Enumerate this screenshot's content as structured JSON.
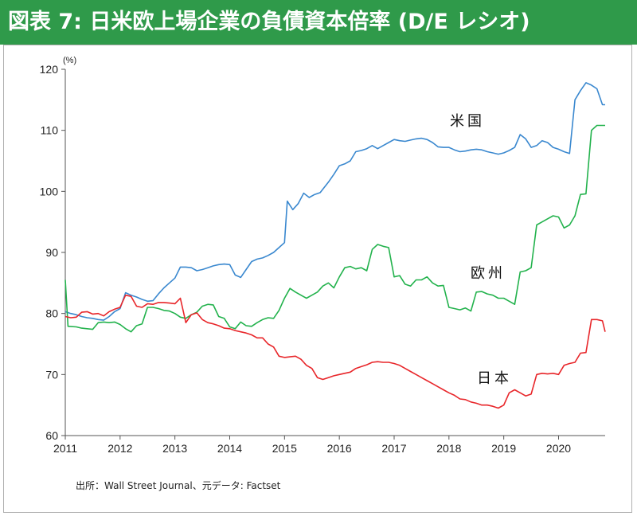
{
  "title": "図表 7: 日米欧上場企業の負債資本倍率 (D/E レシオ)",
  "colors": {
    "title_bg": "#2f9a4a",
    "us": "#3a88cf",
    "europe": "#22b24c",
    "japan": "#e8262a"
  },
  "chart_data": {
    "type": "line",
    "title": "",
    "xlabel": "",
    "ylabel": "(%)",
    "xlim": [
      2011.0,
      2020.85
    ],
    "ylim": [
      60,
      120
    ],
    "yticks": [
      60,
      70,
      80,
      90,
      100,
      110,
      120
    ],
    "xticks": [
      2011,
      2012,
      2013,
      2014,
      2015,
      2016,
      2017,
      2018,
      2019,
      2020
    ],
    "grid": false,
    "legend": "inline labels",
    "series": [
      {
        "name": "米国",
        "color": "#3a88cf",
        "x": [
          2011.0,
          2011.1,
          2011.2,
          2011.3,
          2011.4,
          2011.5,
          2011.6,
          2011.7,
          2011.8,
          2011.9,
          2012.0,
          2012.1,
          2012.2,
          2012.3,
          2012.4,
          2012.5,
          2012.6,
          2012.7,
          2012.8,
          2012.9,
          2013.0,
          2013.1,
          2013.2,
          2013.3,
          2013.4,
          2013.5,
          2013.6,
          2013.7,
          2013.8,
          2013.9,
          2014.0,
          2014.1,
          2014.2,
          2014.3,
          2014.4,
          2014.5,
          2014.6,
          2014.7,
          2014.8,
          2014.9,
          2015.0,
          2015.05,
          2015.15,
          2015.25,
          2015.35,
          2015.45,
          2015.55,
          2015.65,
          2015.8,
          2015.9,
          2016.0,
          2016.1,
          2016.2,
          2016.3,
          2016.4,
          2016.5,
          2016.6,
          2016.7,
          2016.8,
          2016.9,
          2017.0,
          2017.1,
          2017.2,
          2017.3,
          2017.4,
          2017.5,
          2017.6,
          2017.7,
          2017.8,
          2017.9,
          2018.0,
          2018.1,
          2018.2,
          2018.3,
          2018.4,
          2018.5,
          2018.6,
          2018.7,
          2018.8,
          2018.9,
          2019.0,
          2019.1,
          2019.2,
          2019.3,
          2019.4,
          2019.5,
          2019.6,
          2019.7,
          2019.8,
          2019.9,
          2020.0,
          2020.1,
          2020.2,
          2020.3,
          2020.4,
          2020.5,
          2020.6,
          2020.7,
          2020.8,
          2020.85
        ],
        "values": [
          80.3,
          80.0,
          79.8,
          79.5,
          79.3,
          79.2,
          79.0,
          78.9,
          79.5,
          80.3,
          80.8,
          83.4,
          83.0,
          82.7,
          82.3,
          82.0,
          82.1,
          83.2,
          84.2,
          85.0,
          85.8,
          87.6,
          87.6,
          87.5,
          87.0,
          87.2,
          87.5,
          87.8,
          88.0,
          88.1,
          88.0,
          86.3,
          85.9,
          87.2,
          88.5,
          88.9,
          89.1,
          89.5,
          90.0,
          90.8,
          91.6,
          98.4,
          97.0,
          98.0,
          99.7,
          99.0,
          99.5,
          99.8,
          101.5,
          102.8,
          104.2,
          104.5,
          105.0,
          106.5,
          106.7,
          107.0,
          107.5,
          107.0,
          107.5,
          108.0,
          108.5,
          108.3,
          108.2,
          108.4,
          108.6,
          108.7,
          108.5,
          108.0,
          107.3,
          107.2,
          107.2,
          106.8,
          106.5,
          106.6,
          106.8,
          106.9,
          106.8,
          106.5,
          106.3,
          106.1,
          106.3,
          106.7,
          107.2,
          109.3,
          108.6,
          107.2,
          107.5,
          108.3,
          108.0,
          107.2,
          106.9,
          106.5,
          106.2,
          115.0,
          116.5,
          117.8,
          117.4,
          116.8,
          114.2,
          114.2
        ]
      },
      {
        "name": "欧州",
        "color": "#22b24c",
        "x": [
          2011.0,
          2011.05,
          2011.2,
          2011.3,
          2011.4,
          2011.5,
          2011.6,
          2011.7,
          2011.8,
          2011.9,
          2012.0,
          2012.1,
          2012.2,
          2012.3,
          2012.4,
          2012.5,
          2012.6,
          2012.7,
          2012.8,
          2012.9,
          2013.0,
          2013.1,
          2013.2,
          2013.3,
          2013.4,
          2013.5,
          2013.6,
          2013.7,
          2013.8,
          2013.9,
          2014.0,
          2014.1,
          2014.2,
          2014.3,
          2014.4,
          2014.5,
          2014.6,
          2014.7,
          2014.8,
          2014.9,
          2015.0,
          2015.1,
          2015.2,
          2015.3,
          2015.4,
          2015.5,
          2015.6,
          2015.7,
          2015.8,
          2015.9,
          2016.0,
          2016.1,
          2016.2,
          2016.3,
          2016.4,
          2016.5,
          2016.6,
          2016.7,
          2016.8,
          2016.9,
          2017.0,
          2017.1,
          2017.2,
          2017.3,
          2017.4,
          2017.5,
          2017.6,
          2017.7,
          2017.8,
          2017.9,
          2018.0,
          2018.1,
          2018.2,
          2018.3,
          2018.4,
          2018.5,
          2018.6,
          2018.7,
          2018.8,
          2018.9,
          2019.0,
          2019.1,
          2019.2,
          2019.3,
          2019.4,
          2019.5,
          2019.6,
          2019.7,
          2019.8,
          2019.9,
          2020.0,
          2020.1,
          2020.2,
          2020.3,
          2020.4,
          2020.5,
          2020.6,
          2020.7,
          2020.8,
          2020.85
        ],
        "values": [
          85.5,
          77.9,
          77.8,
          77.6,
          77.5,
          77.4,
          78.5,
          78.6,
          78.5,
          78.6,
          78.2,
          77.5,
          77.0,
          78.0,
          78.3,
          81.0,
          81.0,
          80.8,
          80.5,
          80.4,
          80.0,
          79.4,
          79.2,
          79.8,
          80.2,
          81.2,
          81.5,
          81.4,
          79.5,
          79.2,
          77.8,
          77.5,
          78.6,
          78.0,
          77.9,
          78.5,
          79.0,
          79.3,
          79.2,
          80.5,
          82.5,
          84.1,
          83.5,
          83.0,
          82.5,
          83.0,
          83.5,
          84.5,
          85.0,
          84.2,
          86.0,
          87.5,
          87.7,
          87.3,
          87.5,
          87.0,
          90.5,
          91.3,
          91.0,
          90.8,
          86.0,
          86.2,
          84.8,
          84.5,
          85.5,
          85.5,
          86.0,
          85.0,
          84.5,
          84.6,
          81.0,
          80.8,
          80.6,
          80.9,
          80.4,
          83.5,
          83.6,
          83.2,
          83.0,
          82.5,
          82.5,
          82.0,
          81.5,
          86.8,
          87.0,
          87.5,
          94.5,
          95.0,
          95.5,
          96.0,
          95.8,
          94.0,
          94.5,
          96.0,
          99.5,
          99.6,
          110.0,
          110.8,
          110.8,
          110.8
        ]
      },
      {
        "name": "日本",
        "color": "#e8262a",
        "x": [
          2011.0,
          2011.1,
          2011.2,
          2011.3,
          2011.4,
          2011.5,
          2011.6,
          2011.7,
          2011.8,
          2011.9,
          2012.0,
          2012.1,
          2012.2,
          2012.3,
          2012.4,
          2012.5,
          2012.6,
          2012.7,
          2012.8,
          2012.9,
          2013.0,
          2013.1,
          2013.2,
          2013.3,
          2013.4,
          2013.5,
          2013.6,
          2013.7,
          2013.8,
          2013.9,
          2014.0,
          2014.1,
          2014.2,
          2014.3,
          2014.4,
          2014.5,
          2014.6,
          2014.7,
          2014.8,
          2014.9,
          2015.0,
          2015.1,
          2015.2,
          2015.3,
          2015.4,
          2015.5,
          2015.6,
          2015.7,
          2015.8,
          2015.9,
          2016.0,
          2016.1,
          2016.2,
          2016.3,
          2016.4,
          2016.5,
          2016.6,
          2016.7,
          2016.8,
          2016.9,
          2017.0,
          2017.1,
          2017.2,
          2017.3,
          2017.4,
          2017.5,
          2017.6,
          2017.7,
          2017.8,
          2017.9,
          2018.0,
          2018.1,
          2018.2,
          2018.3,
          2018.4,
          2018.5,
          2018.6,
          2018.7,
          2018.8,
          2018.9,
          2019.0,
          2019.1,
          2019.2,
          2019.3,
          2019.4,
          2019.5,
          2019.6,
          2019.7,
          2019.8,
          2019.9,
          2020.0,
          2020.1,
          2020.2,
          2020.3,
          2020.4,
          2020.5,
          2020.6,
          2020.7,
          2020.8,
          2020.85
        ],
        "values": [
          79.5,
          79.3,
          79.4,
          80.2,
          80.3,
          79.9,
          80.0,
          79.6,
          80.3,
          80.7,
          81.0,
          83.0,
          82.8,
          81.2,
          81.0,
          81.6,
          81.5,
          81.8,
          81.8,
          81.7,
          81.6,
          82.5,
          78.5,
          79.8,
          80.1,
          79.0,
          78.5,
          78.3,
          78.0,
          77.6,
          77.5,
          77.2,
          77.0,
          76.8,
          76.5,
          76.0,
          76.0,
          75.0,
          74.5,
          73.0,
          72.8,
          72.9,
          73.0,
          72.5,
          71.5,
          71.0,
          69.5,
          69.2,
          69.5,
          69.8,
          70.0,
          70.2,
          70.4,
          71.0,
          71.3,
          71.6,
          72.0,
          72.1,
          72.0,
          72.0,
          71.8,
          71.5,
          71.0,
          70.5,
          70.0,
          69.5,
          69.0,
          68.5,
          68.0,
          67.5,
          67.0,
          66.6,
          66.0,
          65.9,
          65.5,
          65.3,
          65.0,
          65.0,
          64.8,
          64.5,
          65.0,
          67.0,
          67.5,
          67.0,
          66.5,
          66.8,
          70.0,
          70.2,
          70.1,
          70.2,
          70.0,
          71.5,
          71.8,
          72.0,
          73.5,
          73.6,
          79.0,
          79.0,
          78.8,
          77.0
        ]
      }
    ]
  },
  "labels": {
    "us": "米国",
    "europe": "欧州",
    "japan": "日本"
  },
  "unit": "(%)",
  "source": "出所：Wall Street Journal、元データ: Factset"
}
